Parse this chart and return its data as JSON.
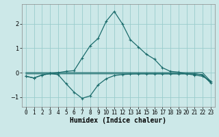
{
  "x": [
    0,
    1,
    2,
    3,
    4,
    5,
    6,
    7,
    8,
    9,
    10,
    11,
    12,
    13,
    14,
    15,
    16,
    17,
    18,
    19,
    20,
    21,
    22,
    23
  ],
  "line_peak": [
    -0.15,
    -0.22,
    -0.1,
    -0.04,
    0.0,
    0.05,
    0.08,
    0.6,
    1.1,
    1.4,
    2.1,
    2.5,
    2.0,
    1.35,
    1.05,
    0.75,
    0.55,
    0.2,
    0.05,
    0.02,
    -0.05,
    -0.1,
    -0.15,
    -0.35
  ],
  "line_dip": [
    -0.15,
    -0.22,
    -0.1,
    -0.04,
    -0.08,
    -0.45,
    -0.8,
    -1.05,
    -0.95,
    -0.5,
    -0.25,
    -0.12,
    -0.08,
    -0.06,
    -0.05,
    -0.05,
    -0.05,
    -0.05,
    -0.05,
    -0.05,
    -0.05,
    -0.05,
    -0.1,
    -0.42
  ],
  "line_flat1": [
    0.0,
    0.0,
    0.0,
    0.0,
    0.0,
    0.0,
    0.0,
    0.0,
    0.0,
    0.0,
    0.0,
    0.0,
    0.0,
    0.0,
    0.0,
    0.0,
    0.0,
    0.0,
    0.0,
    0.0,
    0.0,
    0.0,
    0.0,
    -0.35
  ],
  "line_flat2": [
    -0.05,
    -0.05,
    -0.05,
    -0.05,
    -0.05,
    -0.05,
    -0.05,
    -0.05,
    -0.05,
    -0.05,
    -0.05,
    -0.05,
    -0.05,
    -0.05,
    -0.05,
    -0.05,
    -0.05,
    -0.05,
    -0.05,
    -0.05,
    -0.05,
    -0.05,
    -0.08,
    -0.4
  ],
  "bg_color": "#cce8e8",
  "line_color": "#1a6b6b",
  "grid_color": "#99cccc",
  "ylim": [
    -1.4,
    2.8
  ],
  "xlim": [
    -0.5,
    23.5
  ],
  "xlabel": "Humidex (Indice chaleur)",
  "xlabel_fontsize": 7,
  "tick_fontsize": 5.5
}
